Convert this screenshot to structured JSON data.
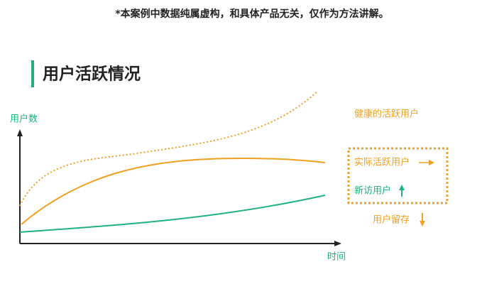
{
  "disclaimer": "*本案例中数据纯属虚构，和具体产品无关，仅作为方法讲解。",
  "title": "用户活跃情况",
  "axes": {
    "y_label": "用户数",
    "x_label": "时间"
  },
  "labels": {
    "healthy": "健康的活跃用户",
    "actual": "实际活跃用户",
    "new": "新访用户",
    "retention": "用户留存"
  }
}
